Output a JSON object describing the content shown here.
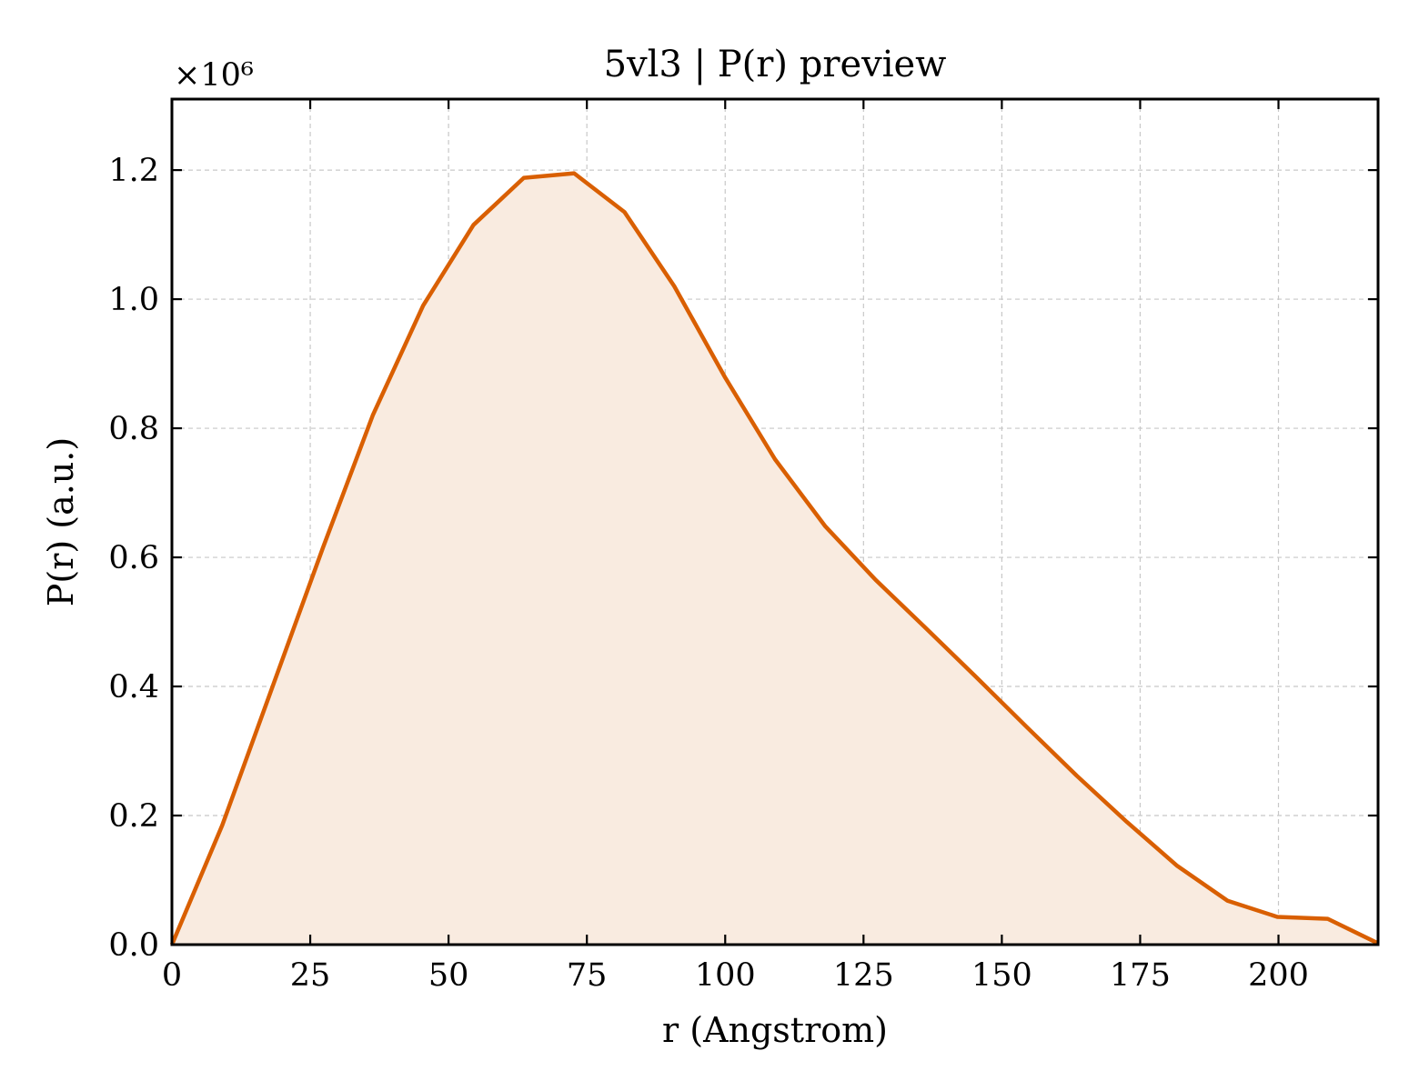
{
  "chart_data": {
    "type": "area",
    "title": "5vl3 | P(r) preview",
    "xlabel": "r (Angstrom)",
    "ylabel": "P(r) (a.u.)",
    "y_multiplier_label": "×10⁶",
    "y_scale": 1000000,
    "xlim": [
      0,
      218
    ],
    "ylim": [
      0,
      1310000
    ],
    "xticks": [
      0,
      25,
      50,
      75,
      100,
      125,
      150,
      175,
      200
    ],
    "xtick_labels": [
      "0",
      "25",
      "50",
      "75",
      "100",
      "125",
      "150",
      "175",
      "200"
    ],
    "yticks": [
      0,
      200000,
      400000,
      600000,
      800000,
      1000000,
      1200000
    ],
    "ytick_labels": [
      "0.0",
      "0.2",
      "0.4",
      "0.6",
      "0.8",
      "1.0",
      "1.2"
    ],
    "grid": true,
    "legend": "none",
    "colors": {
      "line": "#d95f02",
      "fill": "#f9ebe0"
    },
    "series": [
      {
        "x": [
          0,
          9.1,
          18.2,
          27.3,
          36.3,
          45.4,
          54.5,
          63.6,
          72.7,
          81.8,
          90.8,
          99.9,
          109,
          118.1,
          127.2,
          136.3,
          145.3,
          154.4,
          163.5,
          172.6,
          181.7,
          190.8,
          199.8,
          208.9,
          218
        ],
        "y": [
          0,
          185000,
          400000,
          615000,
          820000,
          990000,
          1115000,
          1188000,
          1195000,
          1135000,
          1020000,
          880000,
          752000,
          648000,
          565000,
          490000,
          415000,
          338000,
          262000,
          190000,
          122000,
          68000,
          43000,
          40000,
          2000
        ]
      }
    ]
  }
}
